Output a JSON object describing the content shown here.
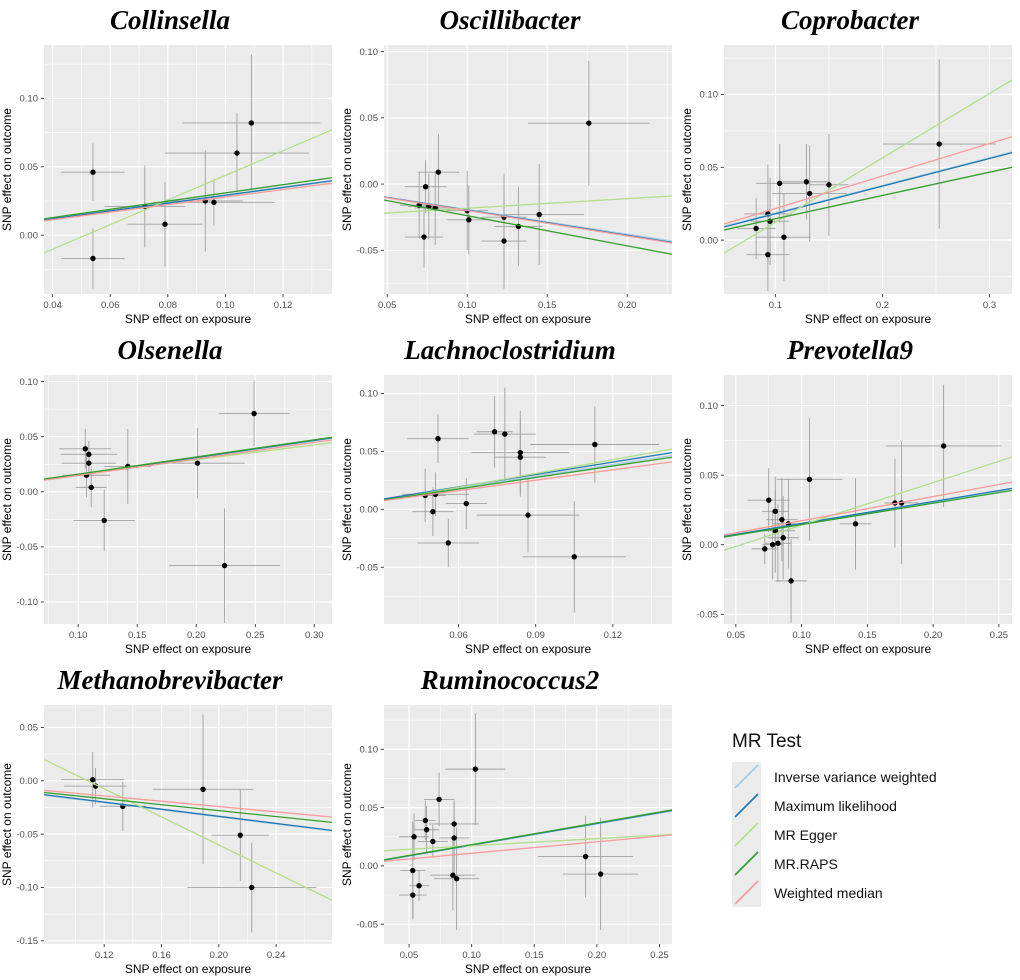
{
  "figure": {
    "background": "#ffffff",
    "panel_background": "#ebebeb",
    "grid_color": "#ffffff",
    "point_color": "#000000",
    "errorbar_color": "#a0a0a0",
    "axis_text_color": "#4d4d4d",
    "axis_title_color": "#000000",
    "tick_color": "#333333"
  },
  "legend": {
    "title": "MR Test",
    "items": [
      {
        "label": "Inverse variance weighted",
        "color": "#a6cee3"
      },
      {
        "label": "Maximum likelihood",
        "color": "#1f78b4"
      },
      {
        "label": "MR Egger",
        "color": "#b2df8a"
      },
      {
        "label": "MR.RAPS",
        "color": "#33a02c"
      },
      {
        "label": "Weighted median",
        "color": "#fb9a99"
      }
    ]
  },
  "chart_data": [
    {
      "type": "scatter",
      "title": "Collinsella",
      "xlabel": "SNP effect on exposure",
      "ylabel": "SNP effect on outcome",
      "xlim": [
        0.037,
        0.137
      ],
      "ylim": [
        -0.043,
        0.139
      ],
      "xticks": [
        0.04,
        0.06,
        0.08,
        0.1,
        0.12
      ],
      "xtick_labels": [
        "0.04",
        "0.06",
        "0.08",
        "0.10",
        "0.12"
      ],
      "yticks": [
        0.0,
        0.05,
        0.1
      ],
      "ytick_labels": [
        "0.00",
        "0.05",
        "0.10"
      ],
      "points": [
        [
          0.054,
          0.046,
          0.011,
          0.021
        ],
        [
          0.054,
          -0.017,
          0.011,
          0.022
        ],
        [
          0.072,
          0.021,
          0.014,
          0.03
        ],
        [
          0.079,
          0.008,
          0.013,
          0.031
        ],
        [
          0.093,
          0.025,
          0.013,
          0.037
        ],
        [
          0.096,
          0.024,
          0.021,
          0.017
        ],
        [
          0.104,
          0.06,
          0.025,
          0.029
        ],
        [
          0.109,
          0.082,
          0.024,
          0.05
        ]
      ],
      "lines": {
        "Inverse variance weighted": [
          0.011,
          0.0395
        ],
        "Maximum likelihood": [
          0.0112,
          0.0398
        ],
        "MR Egger": [
          -0.013,
          0.077
        ],
        "MR.RAPS": [
          0.012,
          0.042
        ],
        "Weighted median": [
          0.0105,
          0.038
        ]
      }
    },
    {
      "type": "scatter",
      "title": "Oscillibacter",
      "xlabel": "SNP effect on exposure",
      "ylabel": "SNP effect on outcome",
      "xlim": [
        0.048,
        0.228
      ],
      "ylim": [
        -0.083,
        0.105
      ],
      "xticks": [
        0.05,
        0.1,
        0.15,
        0.2
      ],
      "xtick_labels": [
        "0.05",
        "0.10",
        "0.15",
        "0.20"
      ],
      "yticks": [
        -0.05,
        0.0,
        0.05,
        0.1
      ],
      "ytick_labels": [
        "-0.05",
        "0.00",
        "0.05",
        "0.10"
      ],
      "points": [
        [
          0.082,
          0.009,
          0.013,
          0.029
        ],
        [
          0.074,
          -0.002,
          0.013,
          0.02
        ],
        [
          0.07,
          -0.016,
          0.012,
          0.025
        ],
        [
          0.076,
          -0.017,
          0.013,
          0.025
        ],
        [
          0.08,
          -0.018,
          0.013,
          0.028
        ],
        [
          0.073,
          -0.04,
          0.012,
          0.023
        ],
        [
          0.1,
          -0.02,
          0.013,
          0.03
        ],
        [
          0.101,
          -0.027,
          0.014,
          0.026
        ],
        [
          0.123,
          -0.025,
          0.014,
          0.033
        ],
        [
          0.123,
          -0.043,
          0.014,
          0.036
        ],
        [
          0.132,
          -0.032,
          0.015,
          0.03
        ],
        [
          0.145,
          -0.023,
          0.028,
          0.038
        ],
        [
          0.176,
          0.046,
          0.038,
          0.047
        ]
      ],
      "lines": {
        "Inverse variance weighted": [
          -0.0095,
          -0.043
        ],
        "Maximum likelihood": [
          -0.0098,
          -0.044
        ],
        "MR Egger": [
          -0.022,
          -0.009
        ],
        "MR.RAPS": [
          -0.012,
          -0.053
        ],
        "Weighted median": [
          -0.01,
          -0.0445
        ]
      }
    },
    {
      "type": "scatter",
      "title": "Coprobacter",
      "xlabel": "SNP effect on exposure",
      "ylabel": "SNP effect on outcome",
      "xlim": [
        0.052,
        0.321
      ],
      "ylim": [
        -0.037,
        0.134
      ],
      "xticks": [
        0.1,
        0.2,
        0.3
      ],
      "xtick_labels": [
        "0.1",
        "0.2",
        "0.3"
      ],
      "yticks": [
        0.0,
        0.05,
        0.1
      ],
      "ytick_labels": [
        "0.00",
        "0.05",
        "0.10"
      ],
      "points": [
        [
          0.082,
          0.008,
          0.018,
          0.021
        ],
        [
          0.093,
          0.018,
          0.022,
          0.034
        ],
        [
          0.095,
          0.013,
          0.018,
          0.03
        ],
        [
          0.093,
          -0.01,
          0.02,
          0.025
        ],
        [
          0.104,
          0.039,
          0.022,
          0.027
        ],
        [
          0.108,
          0.002,
          0.025,
          0.03
        ],
        [
          0.129,
          0.04,
          0.022,
          0.026
        ],
        [
          0.132,
          0.032,
          0.035,
          0.033
        ],
        [
          0.15,
          0.038,
          0.018,
          0.035
        ],
        [
          0.253,
          0.066,
          0.053,
          0.058
        ]
      ],
      "lines": {
        "Inverse variance weighted": [
          0.0095,
          0.0605
        ],
        "Maximum likelihood": [
          0.009,
          0.06
        ],
        "MR Egger": [
          -0.009,
          0.11
        ],
        "MR.RAPS": [
          0.007,
          0.05
        ],
        "Weighted median": [
          0.011,
          0.071
        ]
      }
    },
    {
      "type": "scatter",
      "title": "Olsenella",
      "xlabel": "SNP effect on exposure",
      "ylabel": "SNP effect on outcome",
      "xlim": [
        0.071,
        0.315
      ],
      "ylim": [
        -0.12,
        0.106
      ],
      "xticks": [
        0.1,
        0.15,
        0.2,
        0.25,
        0.3
      ],
      "xtick_labels": [
        "0.10",
        "0.15",
        "0.20",
        "0.25",
        "0.30"
      ],
      "yticks": [
        -0.1,
        -0.05,
        0.0,
        0.05,
        0.1
      ],
      "ytick_labels": [
        "-0.10",
        "-0.05",
        "0.00",
        "0.05",
        "0.10"
      ],
      "points": [
        [
          0.106,
          0.039,
          0.022,
          0.018
        ],
        [
          0.109,
          0.034,
          0.024,
          0.012
        ],
        [
          0.109,
          0.026,
          0.023,
          0.012
        ],
        [
          0.107,
          0.015,
          0.02,
          0.02
        ],
        [
          0.111,
          0.004,
          0.013,
          0.018
        ],
        [
          0.122,
          -0.026,
          0.026,
          0.028
        ],
        [
          0.142,
          0.023,
          0.02,
          0.034
        ],
        [
          0.201,
          0.026,
          0.04,
          0.032
        ],
        [
          0.249,
          0.071,
          0.03,
          0.03
        ],
        [
          0.224,
          -0.067,
          0.047,
          0.052
        ]
      ],
      "lines": {
        "Inverse variance weighted": [
          0.0112,
          0.0485
        ],
        "Maximum likelihood": [
          0.011,
          0.049
        ],
        "MR Egger": [
          0.012,
          0.0445
        ],
        "MR.RAPS": [
          0.0115,
          0.0495
        ],
        "Weighted median": [
          0.0105,
          0.047
        ]
      }
    },
    {
      "type": "scatter",
      "title": "Lachnoclostridium",
      "xlabel": "SNP effect on exposure",
      "ylabel": "SNP effect on outcome",
      "xlim": [
        0.031,
        0.143
      ],
      "ylim": [
        -0.099,
        0.116
      ],
      "xticks": [
        0.06,
        0.09,
        0.12
      ],
      "xtick_labels": [
        "0.06",
        "0.09",
        "0.12"
      ],
      "yticks": [
        -0.05,
        0.0,
        0.05,
        0.1
      ],
      "ytick_labels": [
        "-0.05",
        "0.00",
        "0.05",
        "0.10"
      ],
      "points": [
        [
          0.052,
          0.061,
          0.012,
          0.021
        ],
        [
          0.047,
          0.012,
          0.008,
          0.023
        ],
        [
          0.051,
          0.013,
          0.013,
          0.019
        ],
        [
          0.05,
          -0.002,
          0.008,
          0.021
        ],
        [
          0.056,
          -0.029,
          0.012,
          0.021
        ],
        [
          0.063,
          0.005,
          0.008,
          0.022
        ],
        [
          0.074,
          0.067,
          0.007,
          0.031
        ],
        [
          0.078,
          0.065,
          0.012,
          0.04
        ],
        [
          0.084,
          0.049,
          0.019,
          0.036
        ],
        [
          0.084,
          0.045,
          0.01,
          0.034
        ],
        [
          0.087,
          -0.005,
          0.02,
          0.032
        ],
        [
          0.105,
          -0.041,
          0.02,
          0.048
        ],
        [
          0.113,
          0.056,
          0.025,
          0.033
        ]
      ],
      "lines": {
        "Inverse variance weighted": [
          0.0085,
          0.0465
        ],
        "Maximum likelihood": [
          0.009,
          0.049
        ],
        "MR Egger": [
          0.0075,
          0.052
        ],
        "MR.RAPS": [
          0.008,
          0.045
        ],
        "Weighted median": [
          0.0075,
          0.041
        ]
      }
    },
    {
      "type": "scatter",
      "title": "Prevotella9",
      "xlabel": "SNP effect on exposure",
      "ylabel": "SNP effect on outcome",
      "xlim": [
        0.041,
        0.26
      ],
      "ylim": [
        -0.057,
        0.122
      ],
      "xticks": [
        0.05,
        0.1,
        0.15,
        0.2,
        0.25
      ],
      "xtick_labels": [
        "0.05",
        "0.10",
        "0.15",
        "0.20",
        "0.25"
      ],
      "yticks": [
        -0.05,
        0.0,
        0.05,
        0.1
      ],
      "ytick_labels": [
        "-0.05",
        "0.00",
        "0.05",
        "0.10"
      ],
      "points": [
        [
          0.072,
          -0.003,
          0.01,
          0.011
        ],
        [
          0.075,
          0.032,
          0.016,
          0.023
        ],
        [
          0.08,
          0.024,
          0.01,
          0.025
        ],
        [
          0.08,
          0.01,
          0.015,
          0.03
        ],
        [
          0.078,
          0.0,
          0.008,
          0.025
        ],
        [
          0.082,
          0.001,
          0.01,
          0.028
        ],
        [
          0.085,
          0.018,
          0.012,
          0.03
        ],
        [
          0.086,
          0.005,
          0.012,
          0.03
        ],
        [
          0.09,
          0.015,
          0.012,
          0.032
        ],
        [
          0.092,
          -0.026,
          0.012,
          0.03
        ],
        [
          0.106,
          0.047,
          0.025,
          0.044
        ],
        [
          0.141,
          0.015,
          0.012,
          0.033
        ],
        [
          0.171,
          0.03,
          0.008,
          0.032
        ],
        [
          0.176,
          0.03,
          0.013,
          0.044
        ],
        [
          0.208,
          0.071,
          0.044,
          0.044
        ]
      ],
      "lines": {
        "Inverse variance weighted": [
          0.006,
          0.04
        ],
        "Maximum likelihood": [
          0.006,
          0.0405
        ],
        "MR Egger": [
          -0.004,
          0.063
        ],
        "MR.RAPS": [
          0.0055,
          0.039
        ],
        "Weighted median": [
          0.007,
          0.045
        ]
      }
    },
    {
      "type": "scatter",
      "title": "Methanobrevibacter",
      "xlabel": "SNP effect on exposure",
      "ylabel": "SNP effect on outcome",
      "xlim": [
        0.078,
        0.279
      ],
      "ylim": [
        -0.153,
        0.071
      ],
      "xticks": [
        0.12,
        0.16,
        0.2,
        0.24
      ],
      "xtick_labels": [
        "0.12",
        "0.16",
        "0.20",
        "0.24"
      ],
      "yticks": [
        -0.15,
        -0.1,
        -0.05,
        0.0,
        0.05
      ],
      "ytick_labels": [
        "-0.15",
        "-0.10",
        "-0.05",
        "0.00",
        "0.05"
      ],
      "points": [
        [
          0.112,
          0.001,
          0.022,
          0.026
        ],
        [
          0.114,
          -0.005,
          0.022,
          0.017
        ],
        [
          0.133,
          -0.024,
          0.016,
          0.023
        ],
        [
          0.189,
          -0.008,
          0.035,
          0.07
        ],
        [
          0.215,
          -0.051,
          0.02,
          0.043
        ],
        [
          0.223,
          -0.1,
          0.045,
          0.042
        ]
      ],
      "lines": {
        "Inverse variance weighted": [
          -0.0135,
          -0.047
        ],
        "Maximum likelihood": [
          -0.013,
          -0.0465
        ],
        "MR Egger": [
          0.02,
          -0.112
        ],
        "MR.RAPS": [
          -0.011,
          -0.039
        ],
        "Weighted median": [
          -0.009,
          -0.034
        ]
      }
    },
    {
      "type": "scatter",
      "title": "Ruminococcus2",
      "xlabel": "SNP effect on exposure",
      "ylabel": "SNP effect on outcome",
      "xlim": [
        0.03,
        0.26
      ],
      "ylim": [
        -0.067,
        0.138
      ],
      "xticks": [
        0.05,
        0.1,
        0.15,
        0.2,
        0.25
      ],
      "xtick_labels": [
        "0.05",
        "0.10",
        "0.15",
        "0.20",
        "0.25"
      ],
      "yticks": [
        -0.05,
        0.0,
        0.05,
        0.1
      ],
      "ytick_labels": [
        "-0.05",
        "0.00",
        "0.05",
        "0.10"
      ],
      "points": [
        [
          0.054,
          0.025,
          0.012,
          0.02
        ],
        [
          0.053,
          -0.004,
          0.01,
          0.042
        ],
        [
          0.053,
          -0.025,
          0.011,
          0.021
        ],
        [
          0.058,
          -0.017,
          0.008,
          0.013
        ],
        [
          0.063,
          0.039,
          0.008,
          0.017
        ],
        [
          0.064,
          0.031,
          0.01,
          0.02
        ],
        [
          0.069,
          0.021,
          0.012,
          0.014
        ],
        [
          0.074,
          0.057,
          0.012,
          0.023
        ],
        [
          0.086,
          0.036,
          0.02,
          0.02
        ],
        [
          0.086,
          0.024,
          0.012,
          0.032
        ],
        [
          0.085,
          -0.008,
          0.018,
          0.03
        ],
        [
          0.088,
          -0.011,
          0.018,
          0.044
        ],
        [
          0.103,
          0.083,
          0.024,
          0.048
        ],
        [
          0.191,
          0.008,
          0.038,
          0.035
        ],
        [
          0.203,
          -0.007,
          0.03,
          0.048
        ]
      ],
      "lines": {
        "Inverse variance weighted": [
          0.0048,
          0.047
        ],
        "Maximum likelihood": [
          0.005,
          0.0475
        ],
        "MR Egger": [
          0.013,
          0.027
        ],
        "MR.RAPS": [
          0.0052,
          0.048
        ],
        "Weighted median": [
          0.004,
          0.0265
        ]
      }
    }
  ]
}
